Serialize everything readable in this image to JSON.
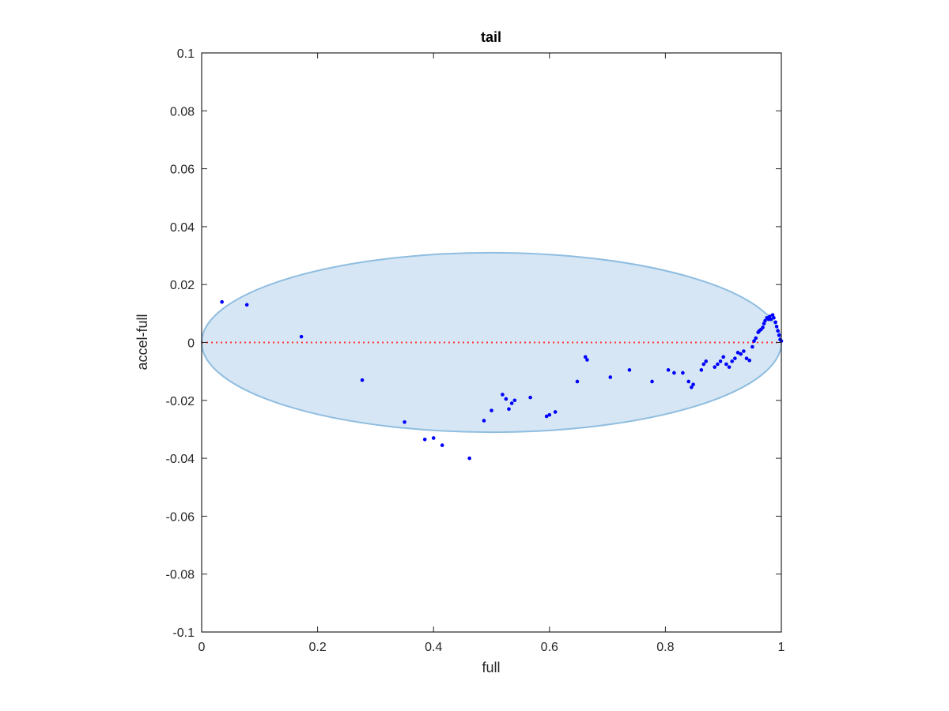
{
  "chart_data": {
    "type": "scatter",
    "title": "tail",
    "xlabel": "full",
    "ylabel": "accel-full",
    "xlim": [
      0,
      1
    ],
    "ylim": [
      -0.1,
      0.1
    ],
    "xticks": [
      0,
      0.2,
      0.4,
      0.6,
      0.8,
      1
    ],
    "xtick_labels": [
      "0",
      "0.2",
      "0.4",
      "0.6",
      "0.8",
      "1"
    ],
    "yticks": [
      -0.1,
      -0.08,
      -0.06,
      -0.04,
      -0.02,
      0,
      0.02,
      0.04,
      0.06,
      0.08,
      0.1
    ],
    "ytick_labels": [
      "-0.1",
      "-0.08",
      "-0.06",
      "-0.04",
      "-0.02",
      "0",
      "0.02",
      "0.04",
      "0.06",
      "0.08",
      "0.1"
    ],
    "grid": false,
    "reference_line": {
      "y": 0,
      "style": "dotted",
      "color": "#ff3333"
    },
    "ellipse": {
      "cx": 0.5,
      "cy": 0,
      "rx": 0.5,
      "ry": 0.031,
      "fill": "#d6e6f4",
      "stroke": "#8fbde0"
    },
    "series": [
      {
        "color": "#0000ff",
        "x": [
          0.035,
          0.078,
          0.172,
          0.277,
          0.35,
          0.385,
          0.4,
          0.415,
          0.462,
          0.487,
          0.5,
          0.519,
          0.525,
          0.53,
          0.535,
          0.54,
          0.567,
          0.595,
          0.6,
          0.61,
          0.648,
          0.662,
          0.665,
          0.705,
          0.738,
          0.777,
          0.805,
          0.815,
          0.83,
          0.84,
          0.845,
          0.848,
          0.862,
          0.866,
          0.87,
          0.885,
          0.89,
          0.895,
          0.9,
          0.905,
          0.91,
          0.915,
          0.92,
          0.925,
          0.93,
          0.935,
          0.94,
          0.945,
          0.95,
          0.953,
          0.956,
          0.96,
          0.962,
          0.965,
          0.968,
          0.97,
          0.972,
          0.975,
          0.978,
          0.98,
          0.982,
          0.985,
          0.987,
          0.99,
          0.992,
          0.994,
          0.996,
          0.998,
          1.0
        ],
        "y": [
          0.014,
          0.013,
          0.002,
          -0.013,
          -0.0275,
          -0.0335,
          -0.033,
          -0.0355,
          -0.04,
          -0.027,
          -0.0235,
          -0.018,
          -0.0195,
          -0.023,
          -0.021,
          -0.02,
          -0.019,
          -0.0255,
          -0.025,
          -0.024,
          -0.0135,
          -0.005,
          -0.006,
          -0.012,
          -0.0095,
          -0.0135,
          -0.0095,
          -0.0105,
          -0.0105,
          -0.0135,
          -0.0155,
          -0.0145,
          -0.0095,
          -0.0075,
          -0.0065,
          -0.0085,
          -0.0075,
          -0.0065,
          -0.005,
          -0.0075,
          -0.0085,
          -0.0065,
          -0.0055,
          -0.0035,
          -0.004,
          -0.003,
          -0.0055,
          -0.0062,
          -0.0015,
          0.0005,
          0.0015,
          0.0035,
          0.004,
          0.0045,
          0.0052,
          0.0065,
          0.0075,
          0.0085,
          0.008,
          0.009,
          0.008,
          0.0095,
          0.0085,
          0.007,
          0.0055,
          0.004,
          0.0025,
          0.001,
          0.0005
        ]
      }
    ]
  }
}
